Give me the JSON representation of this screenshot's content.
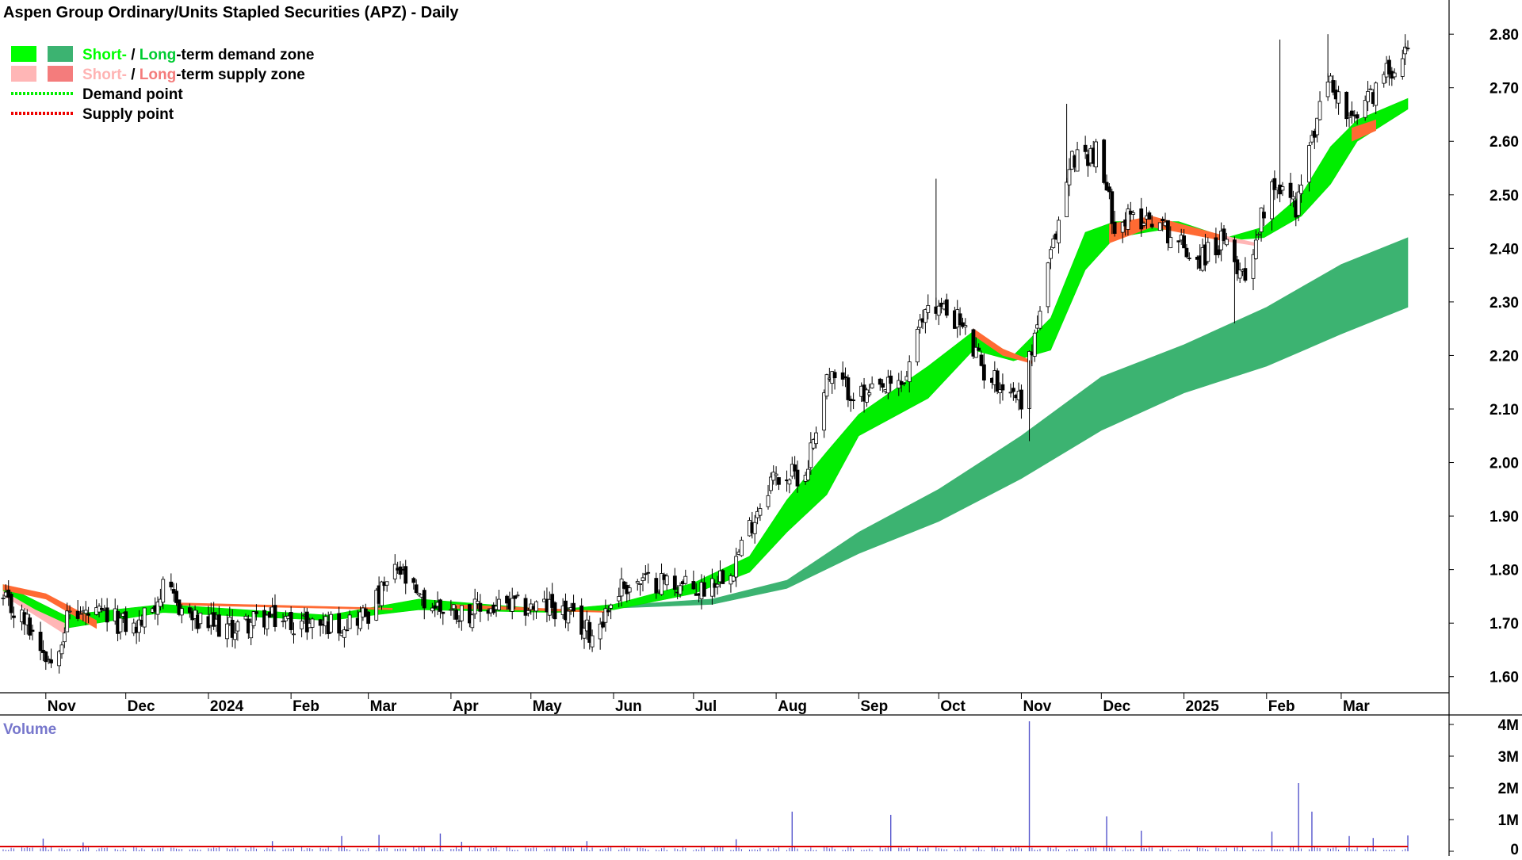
{
  "chart_data": {
    "type": "candlestick",
    "title": "Aspen Group Ordinary/Units Stapled Securities (APZ) - Daily",
    "legend": {
      "placement": "top-left",
      "items": [
        {
          "parts": [
            {
              "text": "Short-",
              "color": "#00ff00"
            },
            {
              "text": " / ",
              "color": "#000000"
            },
            {
              "text": "Long",
              "color": "#00cc33"
            },
            {
              "text": "-term demand zone",
              "color": "#000000"
            }
          ],
          "swatches": [
            "#00ff00",
            "#3cb371"
          ]
        },
        {
          "parts": [
            {
              "text": "Short-",
              "color": "#ffb3b3"
            },
            {
              "text": " / ",
              "color": "#000000"
            },
            {
              "text": "Long",
              "color": "#f47c7c"
            },
            {
              "text": "-term supply zone",
              "color": "#000000"
            }
          ],
          "swatches": [
            "#ffb6b6",
            "#f47c7c"
          ]
        },
        {
          "parts": [
            {
              "text": "Demand point",
              "color": "#000000"
            }
          ],
          "line": "#00ee00"
        },
        {
          "parts": [
            {
              "text": "Supply point",
              "color": "#000000"
            }
          ],
          "line": "#ee0000"
        }
      ]
    },
    "price_axis": {
      "ylim": [
        1.57,
        2.855
      ],
      "ticks": [
        1.6,
        1.7,
        1.8,
        1.9,
        2.0,
        2.1,
        2.2,
        2.3,
        2.4,
        2.5,
        2.6,
        2.7,
        2.8
      ],
      "tick_labels": [
        "1.60",
        "1.70",
        "1.80",
        "1.90",
        "2.00",
        "2.10",
        "2.20",
        "2.30",
        "2.40",
        "2.50",
        "2.60",
        "2.70",
        "2.80"
      ]
    },
    "time_axis": {
      "range": [
        "2023-10-16",
        "2025-03-26"
      ],
      "labels": [
        {
          "date": "2023-11-01",
          "text": "Nov",
          "bold": false
        },
        {
          "date": "2023-12-01",
          "text": "Dec",
          "bold": false
        },
        {
          "date": "2024-01-01",
          "text": "2024",
          "bold": true
        },
        {
          "date": "2024-02-01",
          "text": "Feb",
          "bold": false
        },
        {
          "date": "2024-03-01",
          "text": "Mar",
          "bold": false
        },
        {
          "date": "2024-04-01",
          "text": "Apr",
          "bold": false
        },
        {
          "date": "2024-05-01",
          "text": "May",
          "bold": false
        },
        {
          "date": "2024-06-01",
          "text": "Jun",
          "bold": false
        },
        {
          "date": "2024-07-01",
          "text": "Jul",
          "bold": false
        },
        {
          "date": "2024-08-01",
          "text": "Aug",
          "bold": false
        },
        {
          "date": "2024-09-01",
          "text": "Sep",
          "bold": false
        },
        {
          "date": "2024-10-01",
          "text": "Oct",
          "bold": false
        },
        {
          "date": "2024-11-01",
          "text": "Nov",
          "bold": false
        },
        {
          "date": "2024-12-01",
          "text": "Dec",
          "bold": false
        },
        {
          "date": "2025-01-01",
          "text": "2025",
          "bold": true
        },
        {
          "date": "2025-02-01",
          "text": "Feb",
          "bold": false
        },
        {
          "date": "2025-03-01",
          "text": "Mar",
          "bold": false
        }
      ]
    },
    "price_path": [
      {
        "date": "2023-10-16",
        "close": 1.74
      },
      {
        "date": "2023-10-25",
        "close": 1.7
      },
      {
        "date": "2023-11-03",
        "close": 1.63
      },
      {
        "date": "2023-11-10",
        "close": 1.72
      },
      {
        "date": "2023-11-24",
        "close": 1.71
      },
      {
        "date": "2023-12-05",
        "close": 1.69
      },
      {
        "date": "2023-12-15",
        "close": 1.76
      },
      {
        "date": "2023-12-28",
        "close": 1.7
      },
      {
        "date": "2024-01-10",
        "close": 1.69
      },
      {
        "date": "2024-01-22",
        "close": 1.71
      },
      {
        "date": "2024-02-05",
        "close": 1.7
      },
      {
        "date": "2024-02-20",
        "close": 1.7
      },
      {
        "date": "2024-03-01",
        "close": 1.72
      },
      {
        "date": "2024-03-12",
        "close": 1.8
      },
      {
        "date": "2024-03-20",
        "close": 1.74
      },
      {
        "date": "2024-04-05",
        "close": 1.72
      },
      {
        "date": "2024-04-20",
        "close": 1.73
      },
      {
        "date": "2024-05-10",
        "close": 1.73
      },
      {
        "date": "2024-05-24",
        "close": 1.68
      },
      {
        "date": "2024-06-04",
        "close": 1.77
      },
      {
        "date": "2024-06-20",
        "close": 1.78
      },
      {
        "date": "2024-07-03",
        "close": 1.76
      },
      {
        "date": "2024-07-16",
        "close": 1.81
      },
      {
        "date": "2024-07-30",
        "close": 1.97
      },
      {
        "date": "2024-08-12",
        "close": 1.98
      },
      {
        "date": "2024-08-20",
        "close": 2.16
      },
      {
        "date": "2024-09-03",
        "close": 2.12
      },
      {
        "date": "2024-09-18",
        "close": 2.15
      },
      {
        "date": "2024-09-27",
        "close": 2.3
      },
      {
        "date": "2024-10-08",
        "close": 2.27
      },
      {
        "date": "2024-10-18",
        "close": 2.17
      },
      {
        "date": "2024-11-01",
        "close": 2.12
      },
      {
        "date": "2024-11-12",
        "close": 2.38
      },
      {
        "date": "2024-11-20",
        "close": 2.57
      },
      {
        "date": "2024-11-29",
        "close": 2.58
      },
      {
        "date": "2024-12-06",
        "close": 2.45
      },
      {
        "date": "2024-12-20",
        "close": 2.46
      },
      {
        "date": "2025-01-06",
        "close": 2.38
      },
      {
        "date": "2025-01-15",
        "close": 2.41
      },
      {
        "date": "2025-01-24",
        "close": 2.35
      },
      {
        "date": "2025-02-03",
        "close": 2.53
      },
      {
        "date": "2025-02-12",
        "close": 2.48
      },
      {
        "date": "2025-02-24",
        "close": 2.72
      },
      {
        "date": "2025-03-05",
        "close": 2.63
      },
      {
        "date": "2025-03-14",
        "close": 2.7
      },
      {
        "date": "2025-03-26",
        "close": 2.78
      }
    ],
    "short_term_zone": [
      {
        "date": "2023-10-16",
        "upper": 1.772,
        "lower": 1.76
      },
      {
        "date": "2023-11-08",
        "upper": 1.715,
        "lower": 1.69
      },
      {
        "date": "2023-12-15",
        "upper": 1.735,
        "lower": 1.72
      },
      {
        "date": "2024-02-15",
        "upper": 1.715,
        "lower": 1.705
      },
      {
        "date": "2024-03-20",
        "upper": 1.745,
        "lower": 1.725
      },
      {
        "date": "2024-05-10",
        "upper": 1.725,
        "lower": 1.72
      },
      {
        "date": "2024-06-01",
        "upper": 1.735,
        "lower": 1.725
      },
      {
        "date": "2024-07-01",
        "upper": 1.775,
        "lower": 1.755
      },
      {
        "date": "2024-07-22",
        "upper": 1.825,
        "lower": 1.795
      },
      {
        "date": "2024-08-05",
        "upper": 1.93,
        "lower": 1.87
      },
      {
        "date": "2024-08-20",
        "upper": 2.02,
        "lower": 1.94
      },
      {
        "date": "2024-09-01",
        "upper": 2.09,
        "lower": 2.05
      },
      {
        "date": "2024-09-27",
        "upper": 2.18,
        "lower": 2.12
      },
      {
        "date": "2024-10-14",
        "upper": 2.245,
        "lower": 2.21
      },
      {
        "date": "2024-10-29",
        "upper": 2.2,
        "lower": 2.19
      },
      {
        "date": "2024-11-12",
        "upper": 2.27,
        "lower": 2.21
      },
      {
        "date": "2024-11-25",
        "upper": 2.43,
        "lower": 2.36
      },
      {
        "date": "2024-12-06",
        "upper": 2.45,
        "lower": 2.42
      },
      {
        "date": "2024-12-30",
        "upper": 2.45,
        "lower": 2.44
      },
      {
        "date": "2025-01-17",
        "upper": 2.42,
        "lower": 2.415
      },
      {
        "date": "2025-01-31",
        "upper": 2.44,
        "lower": 2.42
      },
      {
        "date": "2025-02-14",
        "upper": 2.5,
        "lower": 2.46
      },
      {
        "date": "2025-02-25",
        "upper": 2.59,
        "lower": 2.52
      },
      {
        "date": "2025-03-07",
        "upper": 2.64,
        "lower": 2.6
      },
      {
        "date": "2025-03-26",
        "upper": 2.68,
        "lower": 2.66
      }
    ],
    "long_term_zone": [
      {
        "date": "2024-06-01",
        "upper": 1.733,
        "lower": 1.728
      },
      {
        "date": "2024-07-08",
        "upper": 1.745,
        "lower": 1.735
      },
      {
        "date": "2024-08-05",
        "upper": 1.78,
        "lower": 1.765
      },
      {
        "date": "2024-09-01",
        "upper": 1.87,
        "lower": 1.83
      },
      {
        "date": "2024-10-01",
        "upper": 1.95,
        "lower": 1.89
      },
      {
        "date": "2024-11-01",
        "upper": 2.05,
        "lower": 1.97
      },
      {
        "date": "2024-12-01",
        "upper": 2.16,
        "lower": 2.06
      },
      {
        "date": "2025-01-01",
        "upper": 2.22,
        "lower": 2.13
      },
      {
        "date": "2025-02-01",
        "upper": 2.29,
        "lower": 2.18
      },
      {
        "date": "2025-03-01",
        "upper": 2.37,
        "lower": 2.24
      },
      {
        "date": "2025-03-26",
        "upper": 2.42,
        "lower": 2.29
      }
    ],
    "supply_zones": [
      {
        "kind": "long",
        "color": "#ff6a33",
        "points": [
          {
            "date": "2023-10-16",
            "upper": 1.772,
            "lower": 1.762
          },
          {
            "date": "2023-11-01",
            "upper": 1.755,
            "lower": 1.745
          },
          {
            "date": "2023-11-20",
            "upper": 1.705,
            "lower": 1.69
          }
        ]
      },
      {
        "kind": "short",
        "color": "#ffb6b6",
        "points": [
          {
            "date": "2023-10-16",
            "upper": 1.76,
            "lower": 1.752
          },
          {
            "date": "2023-10-28",
            "upper": 1.725,
            "lower": 1.715
          },
          {
            "date": "2023-11-08",
            "upper": 1.7,
            "lower": 1.68
          }
        ]
      },
      {
        "kind": "long",
        "color": "#ff6a33",
        "points": [
          {
            "date": "2023-12-20",
            "upper": 1.738,
            "lower": 1.734
          },
          {
            "date": "2024-03-10",
            "upper": 1.728,
            "lower": 1.725
          }
        ]
      },
      {
        "kind": "long",
        "color": "#ff6a33",
        "points": [
          {
            "date": "2024-04-01",
            "upper": 1.735,
            "lower": 1.728
          },
          {
            "date": "2024-05-30",
            "upper": 1.722,
            "lower": 1.72
          }
        ]
      },
      {
        "kind": "long",
        "color": "#ff6a33",
        "points": [
          {
            "date": "2024-10-14",
            "upper": 2.25,
            "lower": 2.238
          },
          {
            "date": "2024-10-25",
            "upper": 2.212,
            "lower": 2.2
          },
          {
            "date": "2024-11-05",
            "upper": 2.19,
            "lower": 2.185
          }
        ]
      },
      {
        "kind": "long",
        "color": "#ff6a33",
        "points": [
          {
            "date": "2024-12-04",
            "upper": 2.445,
            "lower": 2.41
          },
          {
            "date": "2024-12-20",
            "upper": 2.46,
            "lower": 2.44
          },
          {
            "date": "2025-01-15",
            "upper": 2.425,
            "lower": 2.415
          }
        ]
      },
      {
        "kind": "short",
        "color": "#ffb6b6",
        "points": [
          {
            "date": "2025-01-15",
            "upper": 2.425,
            "lower": 2.415
          },
          {
            "date": "2025-01-28",
            "upper": 2.41,
            "lower": 2.405
          }
        ]
      },
      {
        "kind": "long",
        "color": "#ff6a33",
        "points": [
          {
            "date": "2025-03-05",
            "upper": 2.625,
            "lower": 2.6
          },
          {
            "date": "2025-03-14",
            "upper": 2.64,
            "lower": 2.62
          }
        ]
      }
    ],
    "spikes": [
      {
        "date": "2024-09-30",
        "high": 2.53
      },
      {
        "date": "2024-11-18",
        "high": 2.67
      },
      {
        "date": "2025-02-06",
        "high": 2.79
      },
      {
        "date": "2025-02-24",
        "high": 2.8
      },
      {
        "date": "2025-03-25",
        "high": 2.8
      },
      {
        "date": "2024-11-04",
        "low": 2.04
      },
      {
        "date": "2025-01-20",
        "low": 2.26
      }
    ],
    "volume": {
      "label": "Volume",
      "ylim": [
        0,
        4300000
      ],
      "ticks": [
        0,
        1000000,
        2000000,
        3000000,
        4000000
      ],
      "tick_labels": [
        "0",
        "1M",
        "2M",
        "3M",
        "4M"
      ],
      "baseline_volume": 80000,
      "average_volume": 150000,
      "spikes": [
        {
          "date": "2023-10-31",
          "value": 400000
        },
        {
          "date": "2023-11-15",
          "value": 280000
        },
        {
          "date": "2024-01-25",
          "value": 320000
        },
        {
          "date": "2024-02-20",
          "value": 480000
        },
        {
          "date": "2024-03-05",
          "value": 520000
        },
        {
          "date": "2024-03-28",
          "value": 560000
        },
        {
          "date": "2024-04-05",
          "value": 300000
        },
        {
          "date": "2024-05-22",
          "value": 320000
        },
        {
          "date": "2024-07-17",
          "value": 380000
        },
        {
          "date": "2024-08-07",
          "value": 1250000
        },
        {
          "date": "2024-09-13",
          "value": 1150000
        },
        {
          "date": "2024-11-04",
          "value": 4100000
        },
        {
          "date": "2024-12-03",
          "value": 1100000
        },
        {
          "date": "2024-12-16",
          "value": 650000
        },
        {
          "date": "2025-02-03",
          "value": 620000
        },
        {
          "date": "2025-02-13",
          "value": 2150000
        },
        {
          "date": "2025-02-18",
          "value": 1250000
        },
        {
          "date": "2025-03-04",
          "value": 480000
        },
        {
          "date": "2025-03-13",
          "value": 420000
        },
        {
          "date": "2025-03-26",
          "value": 500000
        }
      ]
    }
  }
}
